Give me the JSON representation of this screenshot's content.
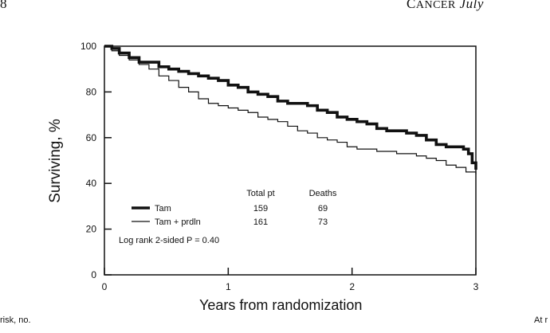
{
  "page": {
    "header_left": "8",
    "header_right_small": "C",
    "header_right_caps": "ANCER",
    "header_right_italic": "July",
    "footer_left": "risk, no.",
    "footer_right": "At r"
  },
  "chart_data": {
    "type": "line",
    "title": "",
    "xlabel": "Years from randomization",
    "ylabel": "Surviving, %",
    "xlim": [
      0,
      3
    ],
    "ylim": [
      0,
      100
    ],
    "x_ticks": [
      0,
      1,
      2,
      3
    ],
    "y_ticks": [
      0,
      20,
      40,
      60,
      80,
      100
    ],
    "grid": false,
    "series": [
      {
        "name": "Tam",
        "style": "thick",
        "points": [
          [
            0,
            100
          ],
          [
            0.06,
            99
          ],
          [
            0.12,
            97
          ],
          [
            0.2,
            95
          ],
          [
            0.28,
            93
          ],
          [
            0.36,
            93
          ],
          [
            0.44,
            91
          ],
          [
            0.52,
            90
          ],
          [
            0.6,
            89
          ],
          [
            0.68,
            88
          ],
          [
            0.76,
            87
          ],
          [
            0.84,
            86
          ],
          [
            0.92,
            85
          ],
          [
            1.0,
            83
          ],
          [
            1.08,
            82
          ],
          [
            1.16,
            80
          ],
          [
            1.24,
            79
          ],
          [
            1.32,
            78
          ],
          [
            1.4,
            76
          ],
          [
            1.48,
            75
          ],
          [
            1.56,
            75
          ],
          [
            1.64,
            74
          ],
          [
            1.72,
            72
          ],
          [
            1.8,
            71
          ],
          [
            1.88,
            69
          ],
          [
            1.96,
            68
          ],
          [
            2.04,
            67
          ],
          [
            2.12,
            66
          ],
          [
            2.2,
            64
          ],
          [
            2.28,
            63
          ],
          [
            2.36,
            63
          ],
          [
            2.44,
            62
          ],
          [
            2.52,
            61
          ],
          [
            2.6,
            59
          ],
          [
            2.68,
            57
          ],
          [
            2.76,
            56
          ],
          [
            2.84,
            56
          ],
          [
            2.9,
            55
          ],
          [
            2.94,
            53
          ],
          [
            2.97,
            49
          ],
          [
            3.0,
            46
          ]
        ]
      },
      {
        "name": "Tam + prdln",
        "style": "thin",
        "points": [
          [
            0,
            100
          ],
          [
            0.06,
            98
          ],
          [
            0.12,
            96
          ],
          [
            0.2,
            94
          ],
          [
            0.28,
            92
          ],
          [
            0.36,
            90
          ],
          [
            0.44,
            87
          ],
          [
            0.52,
            85
          ],
          [
            0.6,
            82
          ],
          [
            0.68,
            80
          ],
          [
            0.76,
            77
          ],
          [
            0.84,
            75
          ],
          [
            0.92,
            74
          ],
          [
            1.0,
            73
          ],
          [
            1.08,
            72
          ],
          [
            1.16,
            71
          ],
          [
            1.24,
            69
          ],
          [
            1.32,
            68
          ],
          [
            1.4,
            67
          ],
          [
            1.48,
            65
          ],
          [
            1.56,
            63
          ],
          [
            1.64,
            62
          ],
          [
            1.72,
            60
          ],
          [
            1.8,
            59
          ],
          [
            1.88,
            58
          ],
          [
            1.96,
            56
          ],
          [
            2.04,
            55
          ],
          [
            2.12,
            55
          ],
          [
            2.2,
            54
          ],
          [
            2.28,
            54
          ],
          [
            2.36,
            53
          ],
          [
            2.44,
            53
          ],
          [
            2.52,
            52
          ],
          [
            2.6,
            51
          ],
          [
            2.68,
            50
          ],
          [
            2.76,
            48
          ],
          [
            2.84,
            47
          ],
          [
            2.92,
            45
          ],
          [
            3.0,
            44
          ]
        ]
      }
    ],
    "legend": {
      "placement": "bottom-left",
      "col_headers": [
        "Total pt",
        "Deaths"
      ],
      "rows": [
        {
          "label": "Tam",
          "total_pt": "159",
          "deaths": "69"
        },
        {
          "label": "Tam + prdln",
          "total_pt": "161",
          "deaths": "73"
        }
      ],
      "note": "Log rank 2-sided P = 0.40"
    }
  }
}
